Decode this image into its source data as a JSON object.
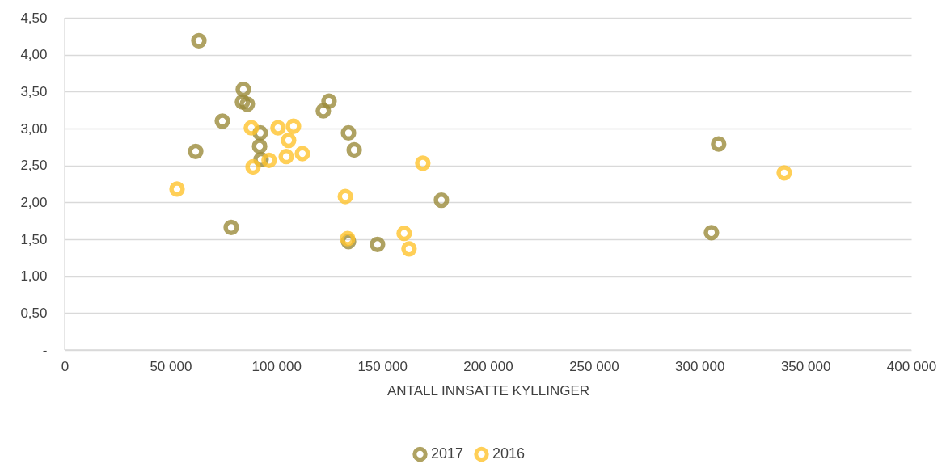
{
  "chart_data": {
    "type": "scatter",
    "xlabel": "ANTALL INNSATTE KYLLINGER",
    "marker": "circle",
    "grid": "y",
    "legend": "bottom",
    "xlim": [
      0,
      400000
    ],
    "ylim": [
      0,
      4.5
    ],
    "xticks": [
      {
        "value": 0,
        "label": "0"
      },
      {
        "value": 50000,
        "label": "50 000"
      },
      {
        "value": 100000,
        "label": "100 000"
      },
      {
        "value": 150000,
        "label": "150 000"
      },
      {
        "value": 200000,
        "label": "200 000"
      },
      {
        "value": 250000,
        "label": "250 000"
      },
      {
        "value": 300000,
        "label": "300 000"
      },
      {
        "value": 350000,
        "label": "350 000"
      },
      {
        "value": 400000,
        "label": "400 000"
      }
    ],
    "yticks": [
      {
        "value": 0,
        "label": "-"
      },
      {
        "value": 0.5,
        "label": "0,50"
      },
      {
        "value": 1,
        "label": "1,00"
      },
      {
        "value": 1.5,
        "label": "1,50"
      },
      {
        "value": 2,
        "label": "2,00"
      },
      {
        "value": 2.5,
        "label": "2,50"
      },
      {
        "value": 3,
        "label": "3,00"
      },
      {
        "value": 3.5,
        "label": "3,50"
      },
      {
        "value": 4,
        "label": "4,00"
      },
      {
        "value": 4.5,
        "label": "4,50"
      }
    ],
    "series": [
      {
        "name": "2017",
        "color": "#9c8c3c",
        "x": [
          63400,
          84400,
          84000,
          86300,
          74500,
          92400,
          92100,
          92800,
          61900,
          78700,
          124900,
          122200,
          134100,
          136800,
          134100,
          147800,
          178000,
          309000,
          305600
        ],
        "values": [
          4.19,
          3.53,
          3.36,
          3.33,
          3.1,
          2.94,
          2.76,
          2.58,
          2.69,
          1.66,
          3.37,
          3.24,
          2.94,
          2.71,
          1.47,
          1.43,
          2.03,
          2.79,
          1.59
        ]
      },
      {
        "name": "2016",
        "color": "#ffc42e",
        "x": [
          53100,
          88200,
          89000,
          100800,
          108100,
          105800,
          96600,
          104700,
          112300,
          132600,
          133700,
          169200,
          160400,
          162700,
          340000
        ],
        "values": [
          2.18,
          3.01,
          2.48,
          3.01,
          3.03,
          2.84,
          2.57,
          2.62,
          2.66,
          2.08,
          1.51,
          2.53,
          1.58,
          1.37,
          2.4
        ]
      }
    ]
  }
}
